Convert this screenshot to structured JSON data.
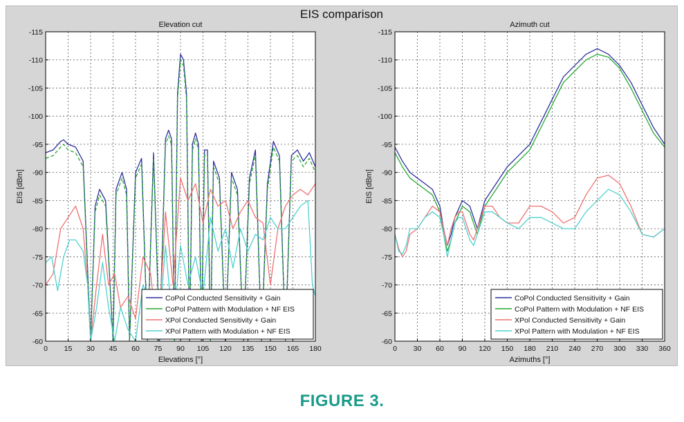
{
  "figure": {
    "title": "EIS comparison",
    "caption": "FIGURE 3."
  },
  "chart_data": [
    {
      "type": "line",
      "title": "Elevation cut",
      "xlabel": "Elevations [°]",
      "ylabel": "EIS [dBm]",
      "xlim": [
        0,
        180
      ],
      "ylim": [
        -60,
        -115
      ],
      "y_axis_reversed": true,
      "xticks": [
        0,
        15,
        30,
        45,
        60,
        75,
        90,
        105,
        120,
        135,
        150,
        165,
        180
      ],
      "yticks": [
        -60,
        -65,
        -70,
        -75,
        -80,
        -85,
        -90,
        -95,
        -100,
        -105,
        -110,
        -115
      ],
      "grid": true,
      "legend_position": "bottom-right",
      "series": [
        {
          "name": "CoPol Conducted Sensitivity + Gain",
          "color": "#2b2f9c",
          "x": [
            0,
            5,
            10,
            12,
            15,
            20,
            25,
            30,
            33,
            36,
            40,
            45,
            47,
            51,
            54,
            56,
            60,
            64,
            68,
            72,
            76,
            80,
            82,
            84,
            86,
            88,
            90,
            92,
            94,
            96,
            98,
            100,
            102,
            104,
            106,
            108,
            110,
            112,
            116,
            120,
            124,
            128,
            132,
            136,
            140,
            144,
            148,
            152,
            156,
            160,
            164,
            168,
            172,
            176,
            180
          ],
          "y": [
            -93.5,
            -94,
            -95.5,
            -95.8,
            -95,
            -94.5,
            -92,
            -60,
            -84,
            -87,
            -85,
            -60,
            -87,
            -90,
            -87,
            -60,
            -90,
            -92.5,
            -60,
            -93.5,
            -60,
            -96,
            -97.5,
            -96,
            -60,
            -104,
            -111,
            -110,
            -104,
            -60,
            -95,
            -97,
            -95,
            -60,
            -94,
            -94,
            -60,
            -92,
            -89,
            -60,
            -90,
            -87,
            -60,
            -89,
            -94,
            -60,
            -88,
            -95.5,
            -93,
            -60,
            -93,
            -94,
            -92,
            -93.5,
            -91
          ]
        },
        {
          "name": "CoPol Pattern with Modulation + NF EIS",
          "color": "#22a831",
          "x": [
            0,
            5,
            10,
            12,
            15,
            20,
            25,
            30,
            33,
            36,
            40,
            45,
            47,
            51,
            54,
            56,
            60,
            64,
            68,
            72,
            76,
            80,
            82,
            84,
            86,
            88,
            90,
            92,
            94,
            96,
            98,
            100,
            102,
            104,
            106,
            108,
            110,
            112,
            116,
            120,
            124,
            128,
            132,
            136,
            140,
            144,
            148,
            152,
            156,
            160,
            164,
            168,
            172,
            176,
            180
          ],
          "y": [
            -92.5,
            -93,
            -94.5,
            -95,
            -94,
            -93.5,
            -91,
            -60,
            -83,
            -86,
            -84,
            -60,
            -86,
            -89,
            -86,
            -60,
            -89,
            -91.5,
            -60,
            -92.5,
            -60,
            -95,
            -96.5,
            -95,
            -60,
            -103,
            -110,
            -109,
            -103,
            -60,
            -94,
            -96,
            -94,
            -60,
            -93,
            -93,
            -60,
            -91,
            -88,
            -60,
            -89,
            -86,
            -60,
            -88,
            -93,
            -60,
            -87,
            -94.5,
            -92,
            -60,
            -92,
            -93,
            -91,
            -92.5,
            -90
          ]
        },
        {
          "name": "XPol Conducted Sensitivity + Gain",
          "color": "#f07070",
          "x": [
            0,
            5,
            10,
            15,
            20,
            25,
            28,
            30,
            34,
            38,
            42,
            46,
            50,
            55,
            60,
            65,
            70,
            75,
            80,
            85,
            90,
            95,
            100,
            105,
            110,
            115,
            120,
            125,
            130,
            135,
            140,
            145,
            150,
            155,
            160,
            165,
            170,
            175,
            180
          ],
          "y": [
            -70,
            -72,
            -80,
            -82,
            -84,
            -80,
            -70,
            -60,
            -70,
            -79,
            -70,
            -72,
            -66,
            -68,
            -64,
            -75,
            -72,
            -60,
            -83,
            -70,
            -89,
            -85,
            -88,
            -81,
            -87,
            -84,
            -85,
            -80,
            -83,
            -85,
            -82,
            -81,
            -70,
            -80,
            -84,
            -86,
            -87,
            -86,
            -88
          ]
        },
        {
          "name": "XPol Pattern with Modulation + NF EIS",
          "color": "#4fd0d0",
          "x": [
            0,
            4,
            8,
            12,
            16,
            20,
            25,
            28,
            30,
            34,
            38,
            42,
            46,
            50,
            55,
            60,
            65,
            70,
            75,
            80,
            85,
            90,
            95,
            100,
            105,
            110,
            115,
            120,
            125,
            130,
            135,
            140,
            145,
            150,
            155,
            160,
            165,
            170,
            175,
            178,
            180
          ],
          "y": [
            -74,
            -75,
            -69,
            -75,
            -78,
            -78,
            -76,
            -70,
            -60,
            -66,
            -74,
            -66,
            -60,
            -66,
            -62,
            -60,
            -70,
            -67,
            -60,
            -77,
            -62,
            -77,
            -70,
            -75,
            -68,
            -82,
            -76,
            -80,
            -73,
            -80,
            -76,
            -79,
            -78,
            -82,
            -80,
            -80,
            -82,
            -84,
            -85,
            -70,
            -68
          ]
        }
      ]
    },
    {
      "type": "line",
      "title": "Azimuth cut",
      "xlabel": "Azimuths [°]",
      "ylabel": "EIS [dBm]",
      "xlim": [
        0,
        360
      ],
      "ylim": [
        -60,
        -115
      ],
      "y_axis_reversed": true,
      "xticks": [
        0,
        30,
        60,
        90,
        120,
        150,
        180,
        210,
        240,
        270,
        300,
        330,
        360
      ],
      "yticks": [
        -60,
        -65,
        -70,
        -75,
        -80,
        -85,
        -90,
        -95,
        -100,
        -105,
        -110,
        -115
      ],
      "grid": true,
      "legend_position": "bottom-right",
      "series": [
        {
          "name": "CoPol Conducted Sensitivity + Gain",
          "color": "#2b2f9c",
          "x": [
            0,
            10,
            20,
            30,
            40,
            50,
            60,
            65,
            70,
            75,
            80,
            90,
            100,
            110,
            120,
            135,
            150,
            165,
            180,
            195,
            210,
            225,
            240,
            255,
            270,
            285,
            300,
            315,
            330,
            345,
            360
          ],
          "y": [
            -94.5,
            -92,
            -90,
            -89,
            -88,
            -87,
            -84,
            -80,
            -77,
            -79,
            -82,
            -85,
            -84,
            -80,
            -85,
            -88,
            -91,
            -93,
            -95,
            -99,
            -103,
            -107,
            -109,
            -111,
            -112,
            -111,
            -109,
            -106,
            -102,
            -98,
            -95
          ]
        },
        {
          "name": "CoPol Pattern with Modulation + NF EIS",
          "color": "#22a831",
          "x": [
            0,
            10,
            20,
            30,
            40,
            50,
            60,
            65,
            70,
            75,
            80,
            90,
            100,
            110,
            120,
            135,
            150,
            165,
            180,
            195,
            210,
            225,
            240,
            255,
            270,
            285,
            300,
            315,
            330,
            345,
            360
          ],
          "y": [
            -93.5,
            -91,
            -89,
            -88,
            -87,
            -86,
            -83,
            -79,
            -76,
            -78,
            -81,
            -84,
            -83,
            -79,
            -84,
            -87,
            -90,
            -92,
            -94,
            -98,
            -102,
            -106,
            -108,
            -110,
            -111,
            -110.5,
            -108.5,
            -105,
            -101,
            -97,
            -94.5
          ]
        },
        {
          "name": "XPol Conducted Sensitivity + Gain",
          "color": "#f07070",
          "x": [
            0,
            5,
            10,
            15,
            20,
            30,
            40,
            50,
            60,
            65,
            70,
            75,
            80,
            85,
            90,
            100,
            105,
            110,
            120,
            130,
            140,
            150,
            165,
            180,
            195,
            210,
            225,
            240,
            255,
            270,
            285,
            300,
            315,
            330,
            345,
            360
          ],
          "y": [
            -79,
            -76.5,
            -75,
            -76,
            -79,
            -80,
            -82,
            -84,
            -83,
            -80,
            -77,
            -80,
            -82,
            -83,
            -83,
            -79,
            -78,
            -80,
            -84,
            -84,
            -82,
            -81,
            -81,
            -84,
            -84,
            -83,
            -81,
            -82,
            -86,
            -89,
            -89.5,
            -88,
            -84,
            -79,
            -78.5,
            -80
          ]
        },
        {
          "name": "XPol Pattern with Modulation + NF EIS",
          "color": "#4fd0d0",
          "x": [
            0,
            5,
            10,
            15,
            20,
            30,
            40,
            50,
            60,
            65,
            70,
            75,
            80,
            85,
            90,
            100,
            105,
            110,
            120,
            130,
            140,
            150,
            165,
            180,
            195,
            210,
            225,
            240,
            255,
            270,
            285,
            300,
            315,
            330,
            345,
            360
          ],
          "y": [
            -79,
            -76,
            -75.5,
            -77,
            -80,
            -80,
            -82,
            -83,
            -82,
            -79,
            -75,
            -78,
            -81,
            -82,
            -82,
            -78,
            -77,
            -79,
            -83,
            -83,
            -82,
            -81,
            -80,
            -82,
            -82,
            -81,
            -80,
            -80,
            -83,
            -85,
            -87,
            -86,
            -83,
            -79,
            -78.5,
            -80
          ]
        }
      ]
    }
  ]
}
